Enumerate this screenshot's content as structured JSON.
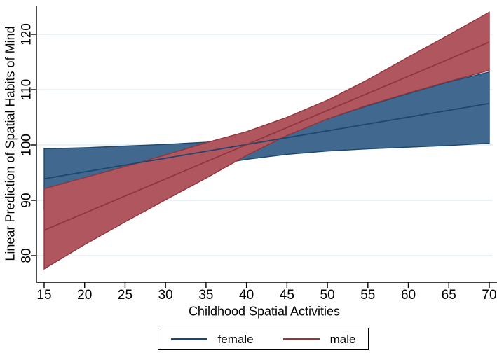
{
  "figure": {
    "background": "#ffffff"
  },
  "colors": {
    "grid": "#dfeaf2",
    "axis": "#000000",
    "text": "#000000",
    "female_line": "#1a476f",
    "female_fill": "#41688e",
    "male_line": "#90353b",
    "male_fill": "#b0565e"
  },
  "axes": {
    "x": {
      "title": "Childhood Spatial Activities",
      "ticks": [
        15,
        20,
        25,
        30,
        35,
        40,
        45,
        50,
        55,
        60,
        65,
        70
      ]
    },
    "y": {
      "title": "Linear Prediction of Spatial Habits of Mind",
      "ticks": [
        80,
        90,
        100,
        110,
        120
      ]
    }
  },
  "legend": {
    "items": [
      {
        "label": "female",
        "color": "#1a476f"
      },
      {
        "label": "male",
        "color": "#90353b"
      }
    ]
  },
  "chart_data": {
    "type": "area",
    "title": "",
    "xlabel": "Childhood Spatial Activities",
    "ylabel": "Linear Prediction of Spatial Habits of Mind",
    "xlim": [
      14,
      70.6
    ],
    "ylim": [
      75,
      125.5
    ],
    "grid": "horizontal-only",
    "legend_position": "bottom-center",
    "x": [
      15,
      20,
      25,
      30,
      35,
      40,
      45,
      50,
      55,
      60,
      65,
      70
    ],
    "series": [
      {
        "name": "female",
        "line_color": "#1a476f",
        "fill_color": "#41688e",
        "fit": [
          93.9,
          95.14,
          96.37,
          97.61,
          98.85,
          100.08,
          101.32,
          102.55,
          103.79,
          105.03,
          106.26,
          107.5
        ],
        "ci_hi": [
          99.3,
          99.5,
          99.8,
          100.1,
          100.5,
          101.2,
          102.6,
          104.7,
          107.1,
          109.3,
          111.4,
          113.2
        ],
        "ci_lo": [
          88.4,
          90.8,
          92.9,
          94.7,
          96.2,
          97.4,
          98.3,
          98.9,
          99.3,
          99.6,
          99.9,
          100.3
        ]
      },
      {
        "name": "male",
        "line_color": "#90353b",
        "fill_color": "#b0565e",
        "fit": [
          84.6,
          87.69,
          90.78,
          93.87,
          96.96,
          100.05,
          103.15,
          106.24,
          109.33,
          112.42,
          115.51,
          118.6
        ],
        "ci_hi": [
          92.1,
          94.1,
          96.1,
          98.2,
          100.4,
          102.4,
          105.0,
          108.1,
          111.8,
          115.9,
          119.9,
          124.0
        ],
        "ci_lo": [
          77.6,
          82.0,
          86.1,
          90.1,
          94.0,
          98.1,
          101.7,
          104.7,
          107.2,
          109.4,
          111.5,
          113.5
        ]
      }
    ]
  }
}
